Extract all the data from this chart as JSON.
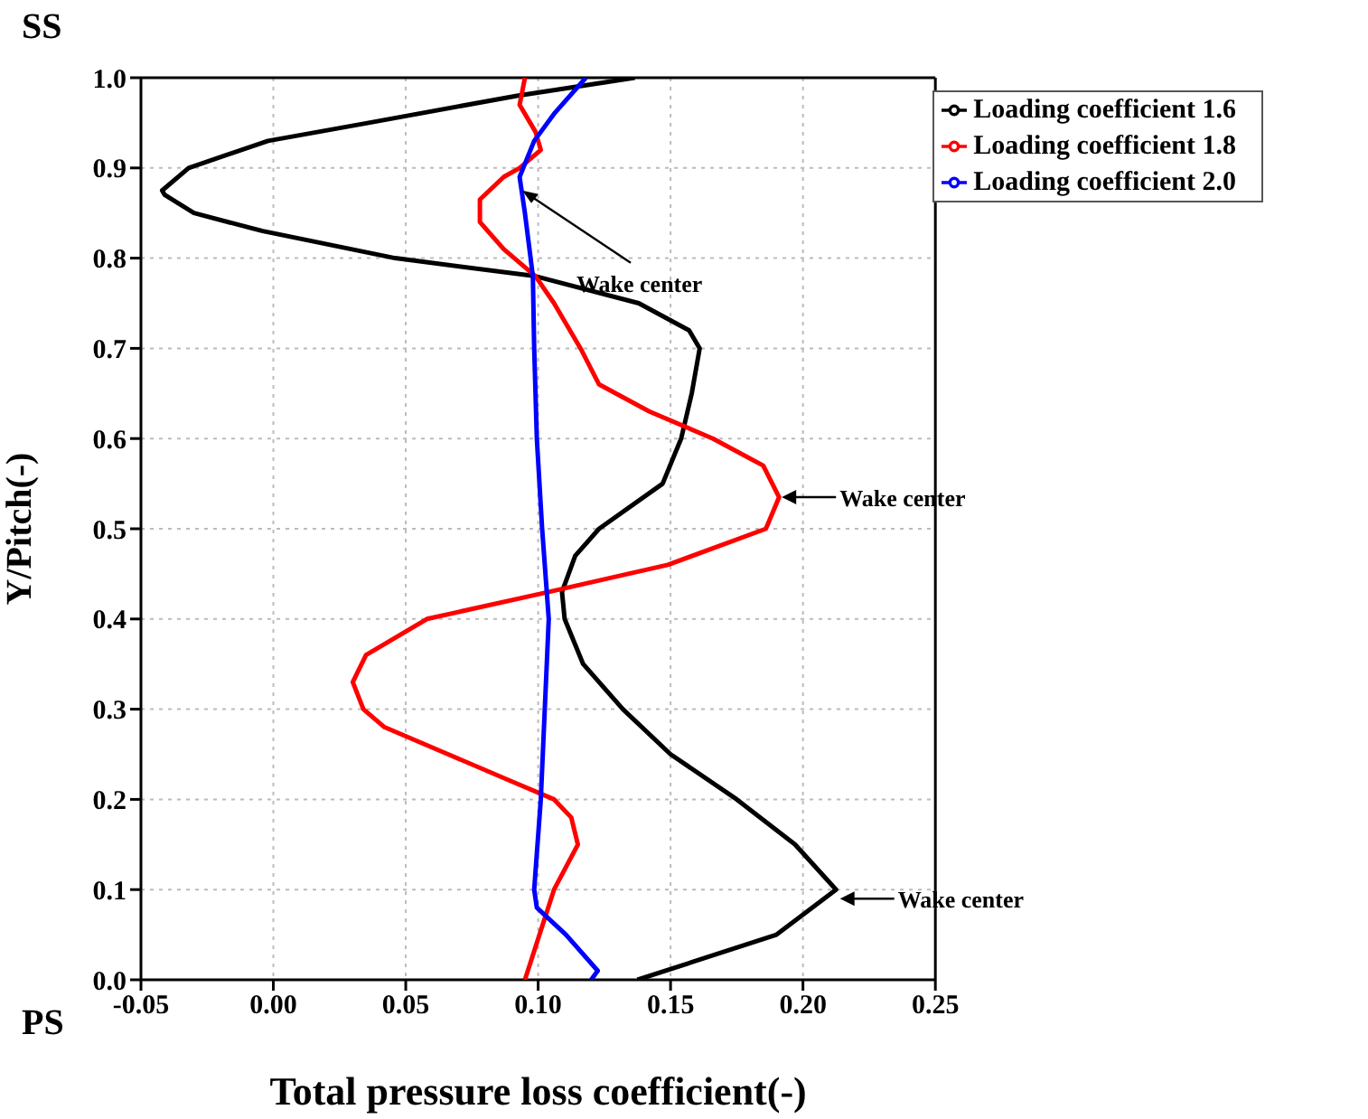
{
  "chart_data": {
    "type": "line",
    "xlabel": "Total pressure loss coefficient(-)",
    "ylabel": "Y/Pitch(-)",
    "xlim": [
      -0.05,
      0.25
    ],
    "ylim": [
      0,
      1
    ],
    "xticks": [
      {
        "value": -0.05,
        "label": "-0.05"
      },
      {
        "value": 0,
        "label": "0.00"
      },
      {
        "value": 0.05,
        "label": "0.05"
      },
      {
        "value": 0.1,
        "label": "0.10"
      },
      {
        "value": 0.15,
        "label": "0.15"
      },
      {
        "value": 0.2,
        "label": "0.20"
      },
      {
        "value": 0.25,
        "label": "0.25"
      }
    ],
    "yticks": [
      {
        "value": 0,
        "label": "0.0"
      },
      {
        "value": 0.1,
        "label": "0.1"
      },
      {
        "value": 0.2,
        "label": "0.2"
      },
      {
        "value": 0.3,
        "label": "0.3"
      },
      {
        "value": 0.4,
        "label": "0.4"
      },
      {
        "value": 0.5,
        "label": "0.5"
      },
      {
        "value": 0.6,
        "label": "0.6"
      },
      {
        "value": 0.7,
        "label": "0.7"
      },
      {
        "value": 0.8,
        "label": "0.8"
      },
      {
        "value": 0.9,
        "label": "0.9"
      },
      {
        "value": 1,
        "label": "1.0"
      }
    ],
    "grid": true,
    "legend": "top right",
    "marker": "none",
    "series": [
      {
        "name": "Loading coefficient 1.6",
        "color": "#000000",
        "x": [
          0.1375,
          0.19,
          0.2125,
          0.197,
          0.175,
          0.15,
          0.132,
          0.117,
          0.11,
          0.109,
          0.114,
          0.123,
          0.147,
          0.154,
          0.158,
          0.161,
          0.157,
          0.138,
          0.099,
          0.046,
          -0.004,
          -0.03,
          -0.041,
          -0.042,
          -0.032,
          -0.002,
          0.036,
          0.092,
          0.1365
        ],
        "values": [
          0,
          0.05,
          0.1,
          0.15,
          0.2,
          0.25,
          0.3,
          0.35,
          0.4,
          0.43,
          0.47,
          0.5,
          0.55,
          0.6,
          0.65,
          0.7,
          0.72,
          0.75,
          0.78,
          0.8,
          0.83,
          0.85,
          0.87,
          0.875,
          0.9,
          0.93,
          0.95,
          0.98,
          1.0
        ]
      },
      {
        "name": "Loading coefficient 1.8",
        "color": "#ff0000",
        "x": [
          0.095,
          0.1005,
          0.106,
          0.115,
          0.1125,
          0.106,
          0.09,
          0.066,
          0.042,
          0.034,
          0.03,
          0.035,
          0.058,
          0.104,
          0.149,
          0.186,
          0.191,
          0.185,
          0.166,
          0.142,
          0.123,
          0.116,
          0.106,
          0.099,
          0.087,
          0.078,
          0.078,
          0.087,
          0.093,
          0.101,
          0.099,
          0.093,
          0.095
        ],
        "values": [
          0,
          0.05,
          0.1,
          0.15,
          0.18,
          0.2,
          0.22,
          0.25,
          0.28,
          0.3,
          0.33,
          0.36,
          0.4,
          0.43,
          0.46,
          0.5,
          0.535,
          0.57,
          0.6,
          0.63,
          0.66,
          0.7,
          0.75,
          0.78,
          0.81,
          0.84,
          0.865,
          0.89,
          0.9,
          0.92,
          0.94,
          0.97,
          1.0
        ]
      },
      {
        "name": "Loading coefficient 2.0",
        "color": "#0000ff",
        "x": [
          0.12,
          0.1225,
          0.1105,
          0.0995,
          0.0985,
          0.101,
          0.1025,
          0.104,
          0.1015,
          0.0995,
          0.0985,
          0.098,
          0.095,
          0.093,
          0.0985,
          0.106,
          0.118
        ],
        "values": [
          0,
          0.01,
          0.05,
          0.08,
          0.1,
          0.2,
          0.3,
          0.4,
          0.5,
          0.6,
          0.7,
          0.78,
          0.85,
          0.89,
          0.93,
          0.96,
          1.0
        ]
      }
    ],
    "annotations": [
      "SS",
      "PS",
      {
        "text": "Wake center",
        "x": 0.094,
        "y": 0.875
      },
      {
        "text": "Wake center",
        "x": 0.192,
        "y": 0.535
      },
      {
        "text": "Wake center",
        "x": 0.214,
        "y": 0.09
      }
    ]
  }
}
